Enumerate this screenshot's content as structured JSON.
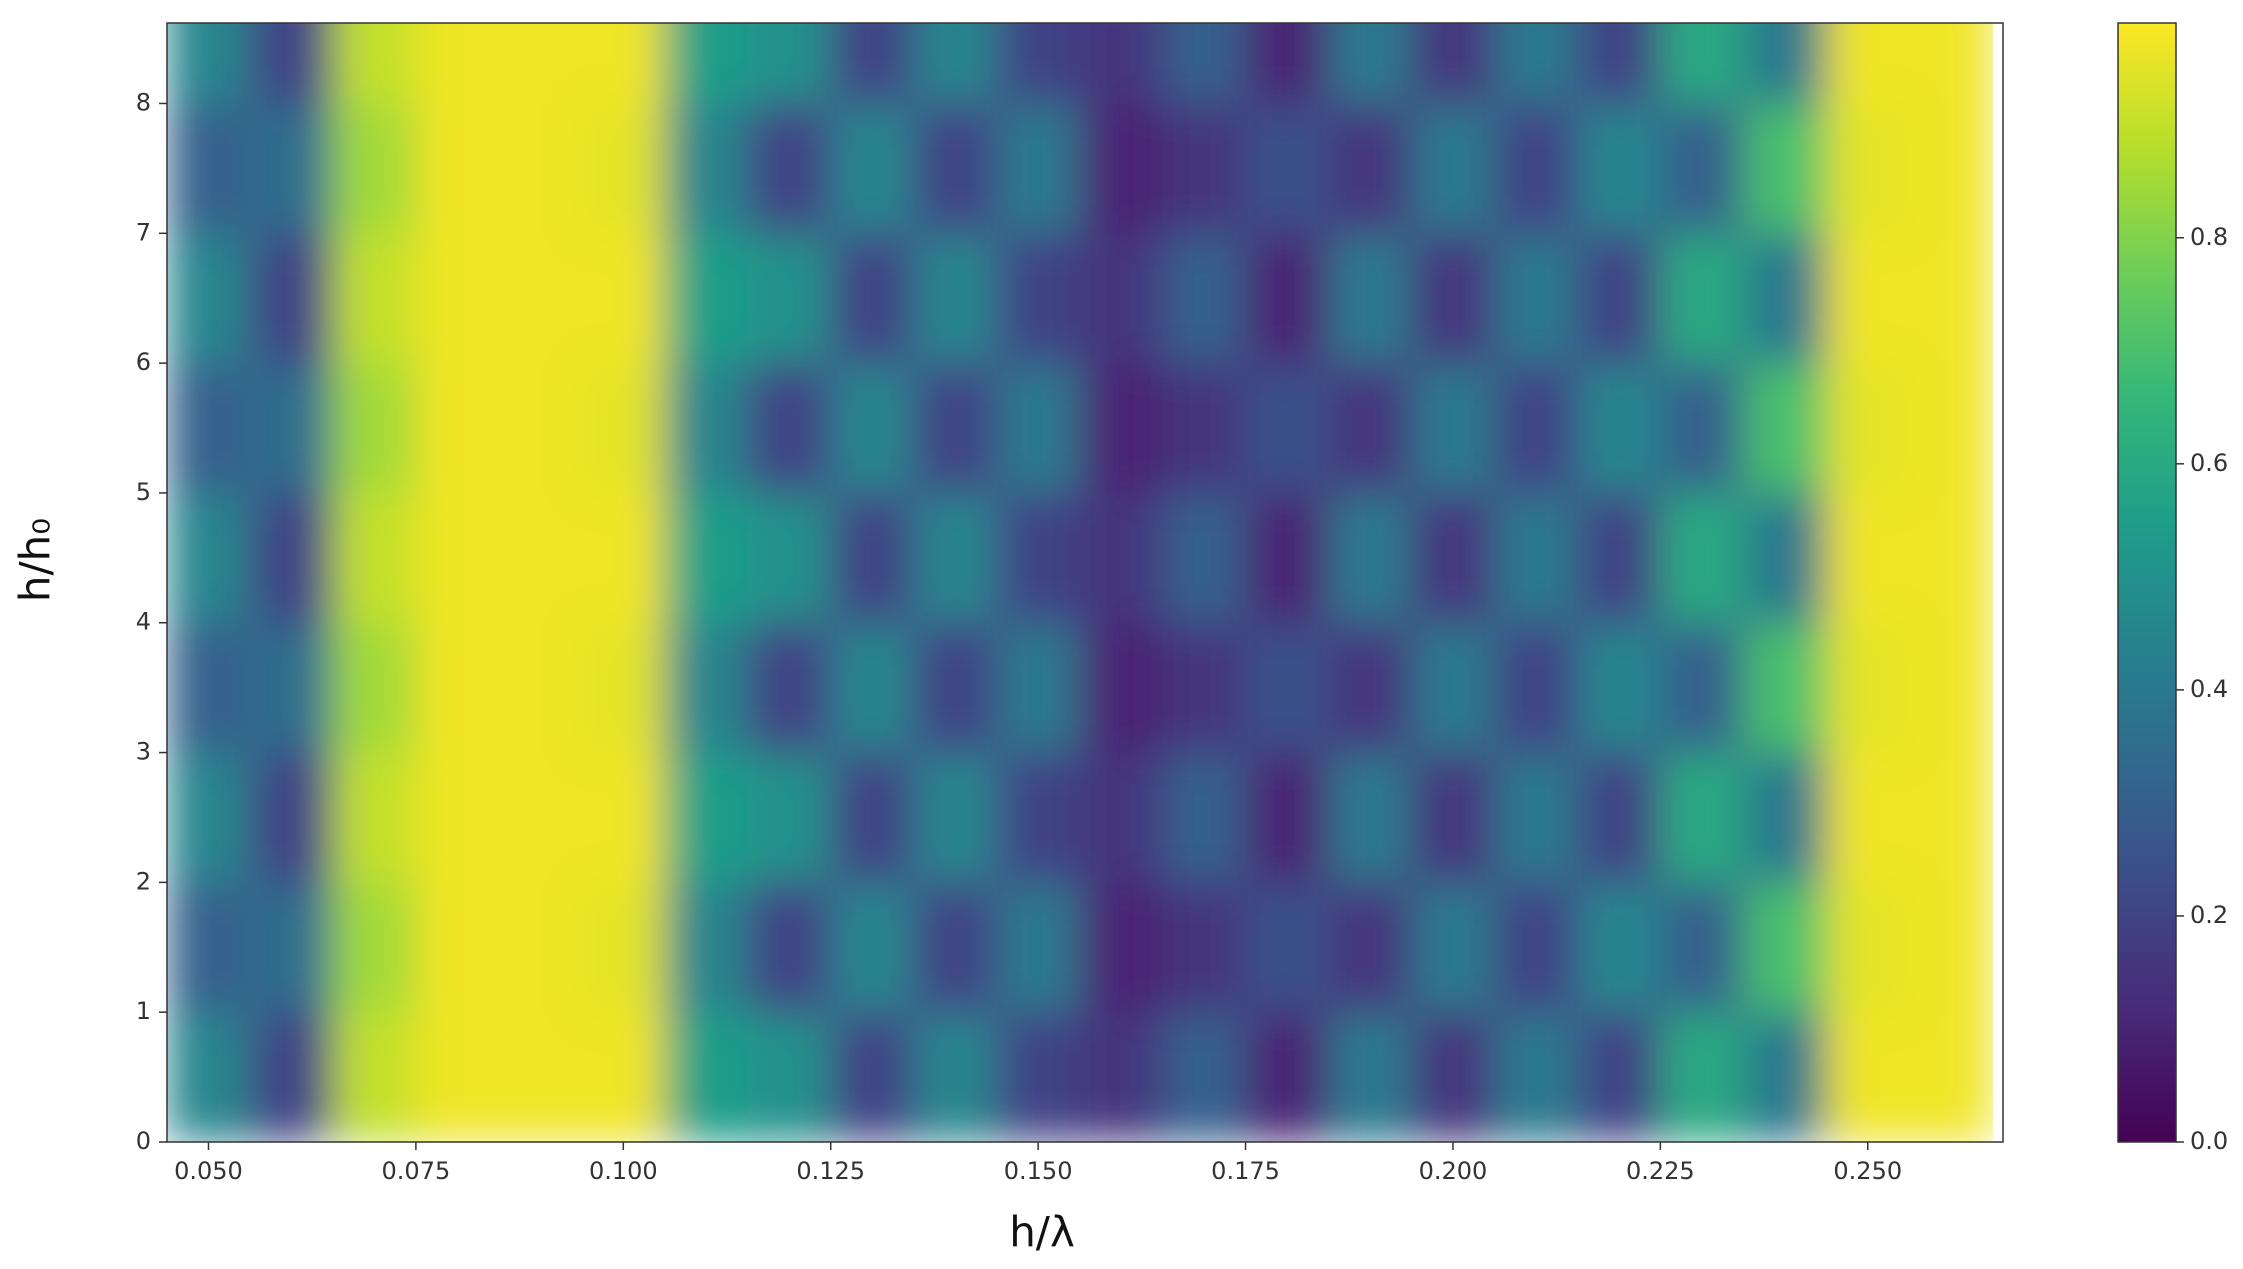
{
  "chart_data": {
    "type": "heatmap",
    "xlabel": "h/λ",
    "ylabel": "h/h₀",
    "colormap": "viridis",
    "x": [
      0.05,
      0.06,
      0.07,
      0.08,
      0.09,
      0.1,
      0.11,
      0.12,
      0.13,
      0.14,
      0.15,
      0.16,
      0.17,
      0.18,
      0.19,
      0.2,
      0.21,
      0.22,
      0.23,
      0.24,
      0.25,
      0.26
    ],
    "y": [
      0.5,
      1.5,
      2.5,
      3.5,
      4.5,
      5.5,
      6.5,
      7.5,
      8.5
    ],
    "z": [
      [
        0.45,
        0.2,
        0.9,
        0.97,
        0.97,
        0.97,
        0.55,
        0.5,
        0.2,
        0.45,
        0.2,
        0.15,
        0.3,
        0.1,
        0.4,
        0.15,
        0.4,
        0.2,
        0.6,
        0.4,
        0.97,
        0.97
      ],
      [
        0.3,
        0.35,
        0.85,
        0.97,
        0.97,
        0.95,
        0.45,
        0.2,
        0.45,
        0.2,
        0.4,
        0.1,
        0.15,
        0.25,
        0.15,
        0.4,
        0.2,
        0.45,
        0.3,
        0.7,
        0.95,
        0.97
      ],
      [
        0.45,
        0.2,
        0.9,
        0.97,
        0.97,
        0.97,
        0.55,
        0.5,
        0.2,
        0.45,
        0.2,
        0.15,
        0.3,
        0.1,
        0.4,
        0.15,
        0.4,
        0.2,
        0.6,
        0.4,
        0.97,
        0.97
      ],
      [
        0.3,
        0.35,
        0.85,
        0.97,
        0.97,
        0.95,
        0.45,
        0.2,
        0.45,
        0.2,
        0.4,
        0.1,
        0.15,
        0.25,
        0.15,
        0.4,
        0.2,
        0.45,
        0.3,
        0.7,
        0.95,
        0.97
      ],
      [
        0.45,
        0.2,
        0.9,
        0.97,
        0.97,
        0.97,
        0.55,
        0.5,
        0.2,
        0.45,
        0.2,
        0.15,
        0.3,
        0.1,
        0.4,
        0.15,
        0.4,
        0.2,
        0.6,
        0.4,
        0.97,
        0.97
      ],
      [
        0.3,
        0.35,
        0.85,
        0.97,
        0.97,
        0.95,
        0.45,
        0.2,
        0.45,
        0.2,
        0.4,
        0.1,
        0.15,
        0.25,
        0.15,
        0.4,
        0.2,
        0.45,
        0.3,
        0.7,
        0.95,
        0.97
      ],
      [
        0.45,
        0.2,
        0.9,
        0.97,
        0.97,
        0.97,
        0.55,
        0.5,
        0.2,
        0.45,
        0.2,
        0.15,
        0.3,
        0.1,
        0.4,
        0.15,
        0.4,
        0.2,
        0.6,
        0.4,
        0.97,
        0.97
      ],
      [
        0.3,
        0.35,
        0.85,
        0.97,
        0.97,
        0.95,
        0.45,
        0.2,
        0.45,
        0.2,
        0.4,
        0.1,
        0.15,
        0.25,
        0.15,
        0.4,
        0.2,
        0.45,
        0.3,
        0.7,
        0.95,
        0.97
      ],
      [
        0.45,
        0.2,
        0.9,
        0.97,
        0.97,
        0.97,
        0.55,
        0.5,
        0.2,
        0.45,
        0.2,
        0.15,
        0.3,
        0.1,
        0.4,
        0.15,
        0.4,
        0.2,
        0.6,
        0.4,
        0.97,
        0.97
      ]
    ],
    "xlim": [
      0.045,
      0.2663
    ],
    "ylim": [
      0,
      8.62
    ],
    "xticks": [
      {
        "value": 0.05,
        "label": "0.050"
      },
      {
        "value": 0.075,
        "label": "0.075"
      },
      {
        "value": 0.1,
        "label": "0.100"
      },
      {
        "value": 0.125,
        "label": "0.125"
      },
      {
        "value": 0.15,
        "label": "0.150"
      },
      {
        "value": 0.175,
        "label": "0.175"
      },
      {
        "value": 0.2,
        "label": "0.200"
      },
      {
        "value": 0.225,
        "label": "0.225"
      },
      {
        "value": 0.25,
        "label": "0.250"
      }
    ],
    "yticks": [
      0,
      1,
      2,
      3,
      4,
      5,
      6,
      7,
      8
    ],
    "clim": [
      0,
      0.99
    ],
    "cticks": [
      {
        "value": 0,
        "label": "0.0"
      },
      {
        "value": 0.2,
        "label": "0.2"
      },
      {
        "value": 0.4,
        "label": "0.4"
      },
      {
        "value": 0.6,
        "label": "0.6"
      },
      {
        "value": 0.8,
        "label": "0.8"
      }
    ]
  }
}
